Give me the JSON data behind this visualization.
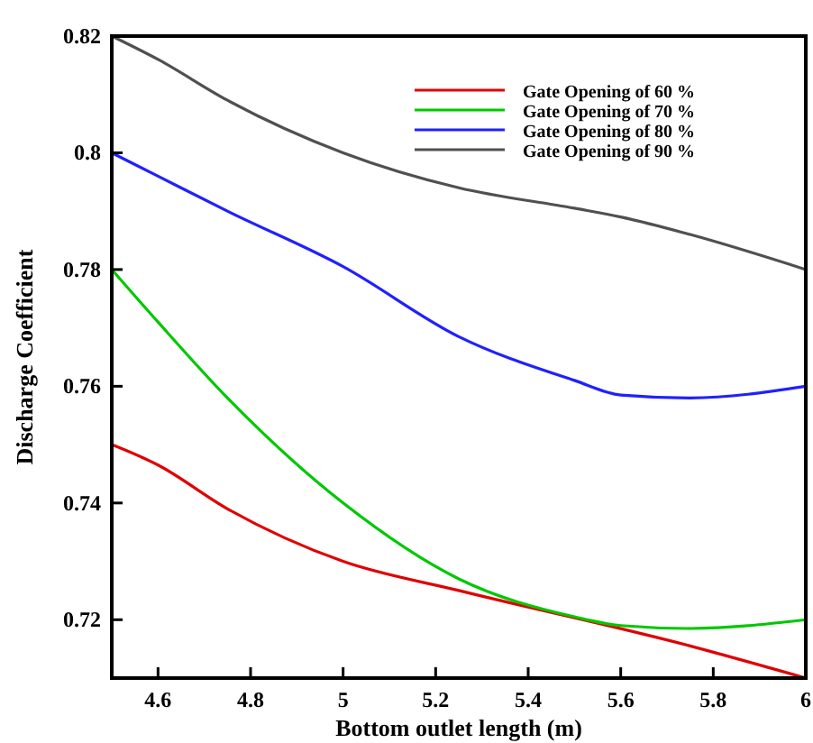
{
  "chart_data": {
    "type": "line",
    "xlabel": "Bottom outlet length (m)",
    "ylabel": "Discharge Coefficient",
    "x": [
      4.5,
      4.6,
      4.75,
      5,
      5.25,
      5.5,
      5.6,
      5.75,
      6
    ],
    "series": [
      {
        "name": "Gate Opening of 60 %",
        "color": "#e00000",
        "x": [
          4.5,
          4.6,
          4.75,
          5,
          5.25,
          5.75,
          6
        ],
        "values": [
          0.75,
          0.7465,
          0.739,
          0.73,
          0.725,
          0.7155,
          0.71
        ]
      },
      {
        "name": "Gate Opening of 70 %",
        "color": "#00c800",
        "values": [
          0.78,
          0.771,
          0.758,
          0.74,
          0.727,
          0.7205,
          0.719,
          0.7185,
          0.72
        ]
      },
      {
        "name": "Gate Opening of 80 %",
        "color": "#2020ff",
        "values": [
          0.8,
          0.796,
          0.79,
          0.7805,
          0.7685,
          0.761,
          0.7585,
          0.758,
          0.76
        ]
      },
      {
        "name": "Gate Opening of 90 %",
        "color": "#505050",
        "values": [
          0.82,
          0.816,
          0.809,
          0.8,
          0.794,
          0.7905,
          0.789,
          0.786,
          0.78
        ]
      }
    ],
    "xlim": [
      4.5,
      6
    ],
    "ylim": [
      0.71,
      0.82
    ],
    "xticks": [
      4.6,
      4.8,
      5,
      5.2,
      5.4,
      5.6,
      5.8,
      6
    ],
    "yticks": [
      0.72,
      0.74,
      0.76,
      0.78,
      0.8,
      0.82
    ],
    "grid": false,
    "legend": "top right",
    "marker": "none",
    "line_style": "solid"
  }
}
